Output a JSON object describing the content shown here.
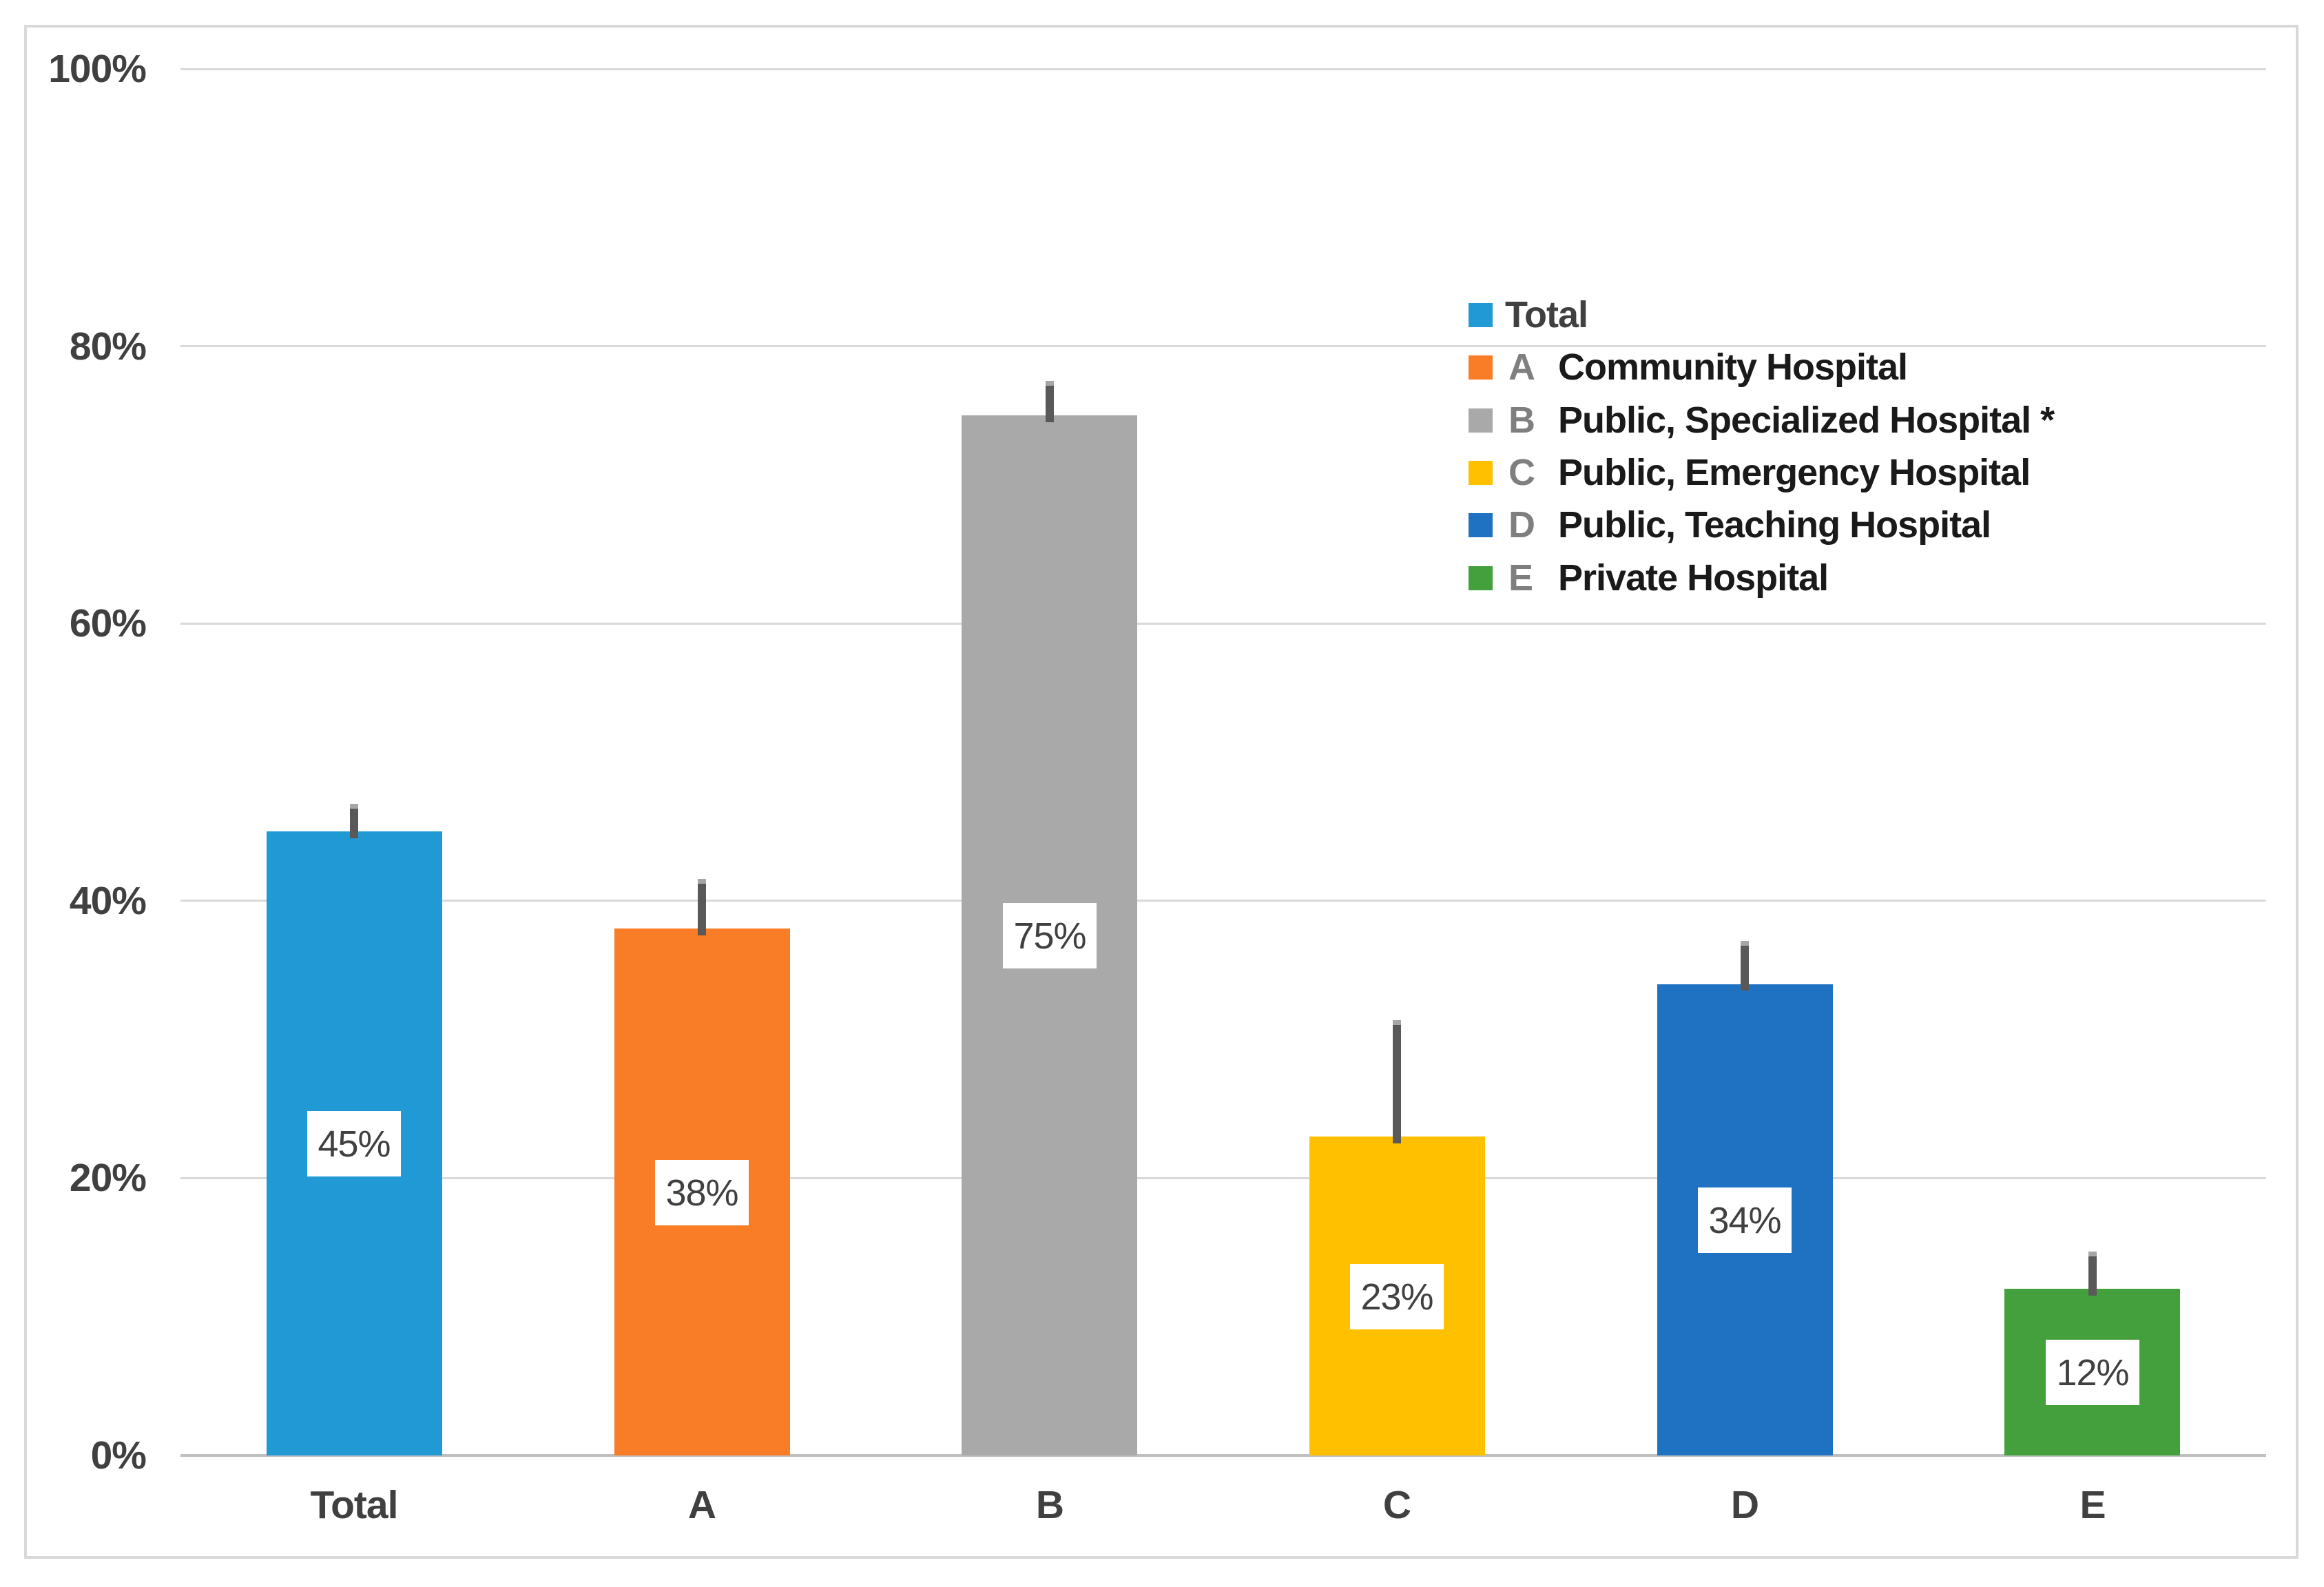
{
  "chart_data": {
    "type": "bar",
    "title": "",
    "xlabel": "",
    "ylabel": "",
    "categories": [
      "Total",
      "A",
      "B",
      "C",
      "D",
      "E"
    ],
    "values": [
      45,
      38,
      75,
      23,
      34,
      12
    ],
    "data_labels": [
      "45%",
      "38%",
      "75%",
      "23%",
      "34%",
      "12%"
    ],
    "error_upper": [
      47,
      41.6,
      77.5,
      31.4,
      37.1,
      14.7
    ],
    "bar_colors": [
      "#2099D4",
      "#F87D26",
      "#A9A9A9",
      "#FFC000",
      "#1F72C2",
      "#44A03C"
    ],
    "ylim": [
      0,
      100
    ],
    "yticks": [
      0,
      20,
      40,
      60,
      80,
      100
    ],
    "ytick_labels": [
      "0%",
      "20%",
      "40%",
      "60%",
      "80%",
      "100%"
    ],
    "grid": true,
    "legend_position": "inside-right",
    "legend": [
      {
        "key": "",
        "label": "Total",
        "color": "#2099D4"
      },
      {
        "key": "A",
        "label": "Community Hospital",
        "color": "#F87D26"
      },
      {
        "key": "B",
        "label": "Public, Specialized Hospital *",
        "color": "#A9A9A9"
      },
      {
        "key": "C",
        "label": "Public, Emergency Hospital",
        "color": "#FFC000"
      },
      {
        "key": "D",
        "label": "Public, Teaching Hospital",
        "color": "#1F72C2"
      },
      {
        "key": "E",
        "label": "Private Hospital",
        "color": "#44A03C"
      }
    ]
  },
  "styles": {
    "background": "#FFFFFF",
    "frame_border_color": "#D9D9D9",
    "gridline_color": "#D9D9D9",
    "axis_line_color": "#BFBFBF",
    "axis_text_color": "#404040",
    "data_label_color": "#404040",
    "error_bar_color": "#595959",
    "error_cap_color": "#A6A6A6",
    "legend_letter_color": "#7F7F7F",
    "legend_label_color": "#1A1A1A",
    "legend_total_color": "#404040"
  }
}
